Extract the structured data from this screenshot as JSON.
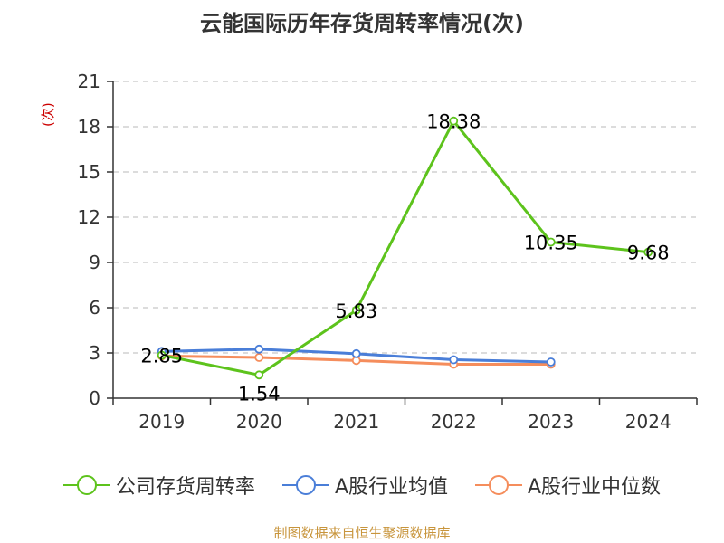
{
  "chart_data": {
    "type": "line",
    "title": "云能国际历年存货周转率情况(次)",
    "ylabel": "(次)",
    "categories": [
      "2019",
      "2020",
      "2021",
      "2022",
      "2023",
      "2024"
    ],
    "ylim": [
      0,
      21
    ],
    "yticks": [
      0,
      3,
      6,
      9,
      12,
      15,
      18,
      21
    ],
    "grid": true,
    "legend_position": "bottom",
    "series": [
      {
        "name": "公司存货周转率",
        "color": "#5dc31c",
        "values": [
          2.85,
          1.54,
          5.83,
          18.38,
          10.35,
          9.68
        ],
        "labels": [
          "2.85",
          "1.54",
          "5.83",
          "18.38",
          "10.35",
          "9.68"
        ]
      },
      {
        "name": "A股行业均值",
        "color": "#4a7ed8",
        "values": [
          3.1,
          3.25,
          2.95,
          2.55,
          2.4,
          null
        ]
      },
      {
        "name": "A股行业中位数",
        "color": "#f58d5c",
        "values": [
          2.8,
          2.7,
          2.5,
          2.25,
          2.25,
          null
        ]
      }
    ]
  },
  "source": "制图数据来自恒生聚源数据库"
}
